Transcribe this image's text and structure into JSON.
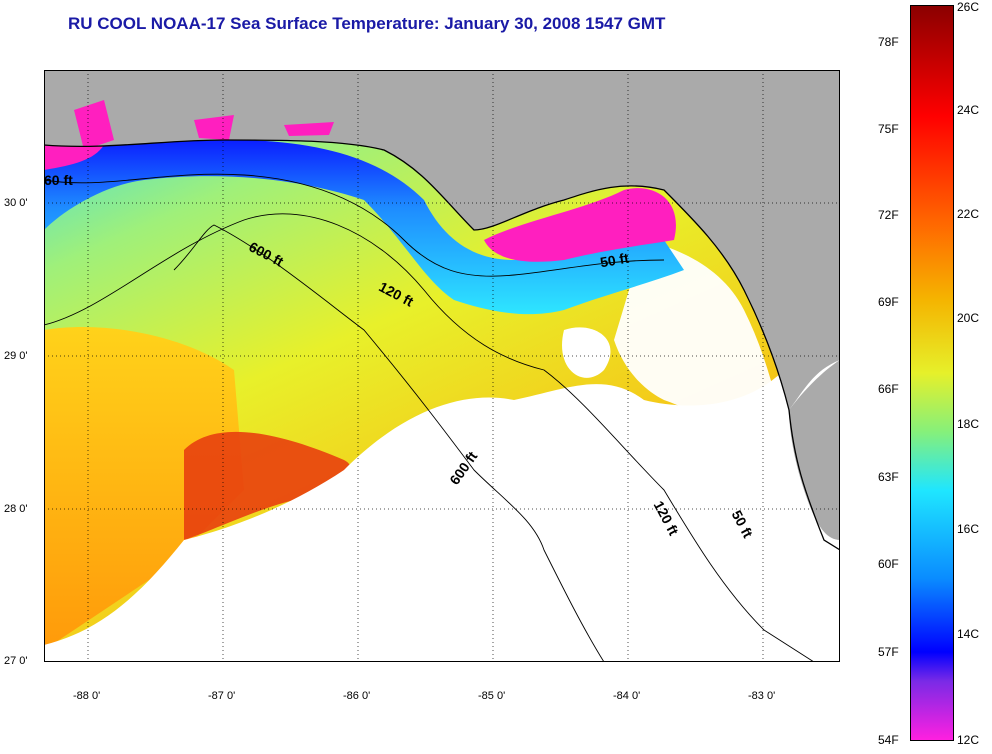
{
  "title": "RU COOL  NOAA-17  Sea Surface Temperature:  January 30, 2008 1547 GMT",
  "map": {
    "lon_range": [
      -88.35,
      -82.45
    ],
    "lat_range": [
      26.97,
      30.88
    ],
    "lon_ticks": [
      "-88 0'",
      "-87 0'",
      "-86 0'",
      "-85 0'",
      "-84 0'",
      "-83 0'"
    ],
    "lat_ticks": [
      "30 0'",
      "29 0'",
      "28 0'",
      "27 0'"
    ],
    "contour_labels": [
      "60 ft",
      "600 ft",
      "120 ft",
      "50 ft",
      "600 ft",
      "120 ft",
      "50 ft"
    ],
    "colors": {
      "land": "#aaaaaa",
      "cloud": "#ffffff",
      "warm": "#e83a10",
      "mid": "#e6f02a",
      "cool": "#29d6ff",
      "cold": "#1010e0",
      "coldest": "#ff20c0"
    }
  },
  "colorbar": {
    "celsius": [
      "26C",
      "24C",
      "22C",
      "20C",
      "18C",
      "16C",
      "14C",
      "12C"
    ],
    "fahrenheit": [
      "78F",
      "75F",
      "72F",
      "69F",
      "66F",
      "63F",
      "60F",
      "57F",
      "54F"
    ]
  }
}
